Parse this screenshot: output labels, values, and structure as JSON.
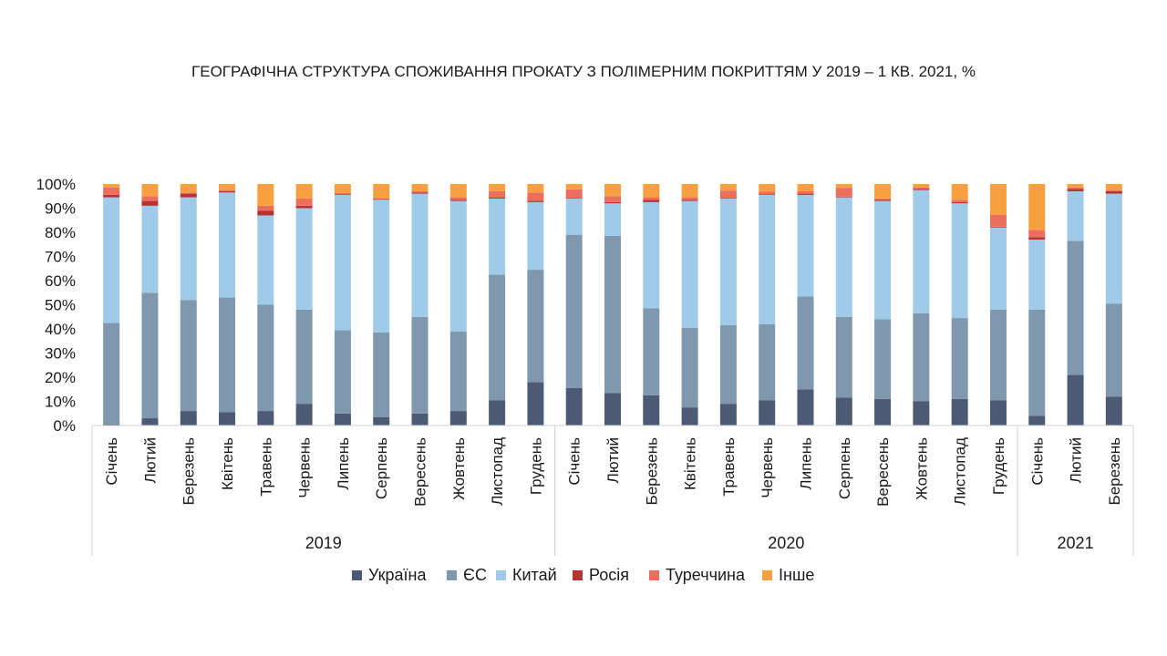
{
  "chart_data": {
    "type": "bar",
    "stacked": true,
    "title": "ГЕОГРАФІЧНА СТРУКТУРА СПОЖИВАННЯ ПРОКАТУ З ПОЛІМЕРНИМ ПОКРИТТЯМ У 2019 – 1 КВ. 2021, %",
    "xlabel": "",
    "ylabel": "",
    "ylim": [
      0,
      100
    ],
    "yticks": [
      "0%",
      "10%",
      "20%",
      "30%",
      "40%",
      "50%",
      "60%",
      "70%",
      "80%",
      "90%",
      "100%"
    ],
    "legend_position": "bottom",
    "grid": false,
    "groups": [
      {
        "label": "2019",
        "categories": [
          "Січень",
          "Лютий",
          "Березень",
          "Квітень",
          "Травень",
          "Червень",
          "Липень",
          "Серпень",
          "Вересень",
          "Жовтень",
          "Листопад",
          "Грудень"
        ]
      },
      {
        "label": "2020",
        "categories": [
          "Січень",
          "Лютий",
          "Березень",
          "Квітень",
          "Травень",
          "Червень",
          "Липень",
          "Серпень",
          "Вересень",
          "Жовтень",
          "Листопад",
          "Грудень"
        ]
      },
      {
        "label": "2021",
        "categories": [
          "Січень",
          "Лютий",
          "Березень"
        ]
      }
    ],
    "series": [
      {
        "name": "Україна",
        "color": "#4d5a73",
        "values": [
          0.5,
          3,
          6,
          5.5,
          6,
          9,
          5,
          3.5,
          5,
          6,
          10.5,
          18,
          15.5,
          13.5,
          12.5,
          7.5,
          9,
          10.5,
          15,
          11.5,
          11,
          10,
          11,
          10.5,
          4,
          21,
          12
        ]
      },
      {
        "name": "ЄС",
        "color": "#7f98ad",
        "values": [
          42,
          52,
          46,
          47.5,
          44,
          39,
          34.5,
          35,
          40,
          33,
          52,
          46.5,
          63.5,
          65,
          36,
          33,
          32.5,
          31.5,
          38.5,
          33.5,
          33,
          36.5,
          33.5,
          37.5,
          44,
          55.5,
          38.5
        ]
      },
      {
        "name": "Китай",
        "color": "#a0cbe8",
        "values": [
          52,
          36,
          42.5,
          43.5,
          37,
          42,
          56,
          55,
          51,
          54,
          31.5,
          28,
          15,
          13.5,
          44,
          52.5,
          52.5,
          53.5,
          42,
          49.5,
          49,
          51,
          47.5,
          34,
          29,
          20.5,
          45.5
        ]
      },
      {
        "name": "Росія",
        "color": "#b83232",
        "values": [
          1,
          2,
          1.5,
          0.5,
          2,
          1,
          0.3,
          0.3,
          0.5,
          0.5,
          0.5,
          0.5,
          0.3,
          0.5,
          1,
          0.5,
          0.3,
          0.3,
          0.5,
          0.3,
          0.5,
          0.5,
          0.5,
          0.3,
          1,
          1,
          1
        ]
      },
      {
        "name": "Туреччина",
        "color": "#ec6f5e",
        "values": [
          3,
          2,
          0.5,
          0.5,
          2,
          3,
          0.5,
          0.3,
          0.5,
          1,
          2.5,
          3.5,
          3.5,
          2.5,
          1,
          1,
          3,
          1,
          1,
          3.5,
          0.5,
          0.5,
          1,
          5,
          3,
          0.5,
          0.5
        ]
      },
      {
        "name": "Інше",
        "color": "#f7a040",
        "values": [
          1.5,
          5,
          3.5,
          2.5,
          9,
          6,
          3.7,
          5.9,
          3,
          5.5,
          3,
          3.5,
          2.2,
          5,
          5.5,
          5.5,
          2.7,
          3.2,
          3,
          1.7,
          6,
          1.5,
          6.5,
          12.7,
          19,
          1.5,
          2.5
        ]
      }
    ]
  }
}
